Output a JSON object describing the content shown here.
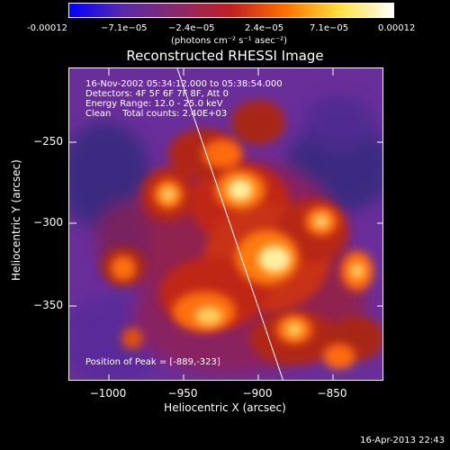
{
  "colorbar": {
    "tick_labels": [
      "-0.00012",
      "−7.1e−05",
      "−2.4e−05",
      "2.4e−05",
      "7.1e−05",
      "0.00012"
    ],
    "units": "(photons cm⁻² s⁻¹ asec⁻²)",
    "colors": [
      "#0000ff",
      "#5a2aa8",
      "#8a2a6a",
      "#c02020",
      "#ff7000",
      "#ffe040",
      "#ffffff"
    ]
  },
  "plot": {
    "title": "Reconstructed RHESSI Image",
    "info_lines": [
      "16-Nov-2002 05:34:12.000 to 05:38:54.000",
      "Detectors: 4F 5F 6F 7F 8F, Att 0",
      "Energy Range: 12.0 - 25.0 keV",
      "Clean    Total counts: 2.40E+03"
    ],
    "peak_text": "Position of Peak = [-889,-323]",
    "xlabel": "Heliocentric X (arcsec)",
    "ylabel": "Heliocentric Y (arcsec)",
    "xticks": [
      "−1000",
      "−950",
      "−900",
      "−850"
    ],
    "yticks": [
      "−250",
      "−300",
      "−350"
    ]
  },
  "timestamp": "16-Apr-2013 22:43"
}
